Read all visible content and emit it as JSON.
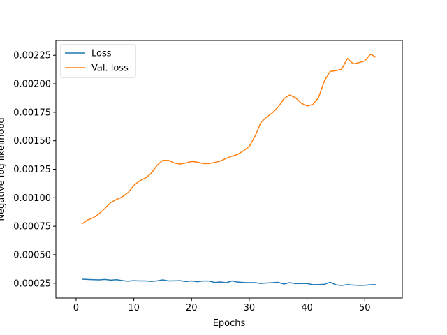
{
  "chart_data": {
    "type": "line",
    "xlabel": "Epochs",
    "ylabel": "Negative log likelihood",
    "xlim": [
      -3.5,
      56.5
    ],
    "ylim": [
      0.00012,
      0.00238
    ],
    "xticks": [
      0,
      10,
      20,
      30,
      40,
      50
    ],
    "yticks": [
      0.00025,
      0.0005,
      0.00075,
      0.001,
      0.00125,
      0.0015,
      0.00175,
      0.002,
      0.00225
    ],
    "ytick_labels": [
      "0.00025",
      "0.00050",
      "0.00075",
      "0.00100",
      "0.00125",
      "0.00150",
      "0.00175",
      "0.00200",
      "0.00225"
    ],
    "legend_position": "upper-left",
    "grid": false,
    "series": [
      {
        "name": "Loss",
        "color": "#1f77b4",
        "x": [
          1,
          2,
          3,
          4,
          5,
          6,
          7,
          8,
          9,
          10,
          11,
          12,
          13,
          14,
          15,
          16,
          17,
          18,
          19,
          20,
          21,
          22,
          23,
          24,
          25,
          26,
          27,
          28,
          29,
          30,
          31,
          32,
          33,
          34,
          35,
          36,
          37,
          38,
          39,
          40,
          41,
          42,
          43,
          44,
          45,
          46,
          47,
          48,
          49,
          50,
          51,
          52
        ],
        "y": [
          0.000285,
          0.000283,
          0.000281,
          0.000279,
          0.000283,
          0.000277,
          0.000281,
          0.000273,
          0.000268,
          0.000272,
          0.00027,
          0.00027,
          0.000266,
          0.00027,
          0.000279,
          0.00027,
          0.000271,
          0.000272,
          0.000265,
          0.00027,
          0.000263,
          0.000269,
          0.000269,
          0.000257,
          0.000261,
          0.000254,
          0.00027,
          0.00026,
          0.000256,
          0.000255,
          0.000255,
          0.000248,
          0.000252,
          0.000255,
          0.000258,
          0.000243,
          0.000255,
          0.000246,
          0.000248,
          0.000247,
          0.000237,
          0.000238,
          0.00024,
          0.000258,
          0.000236,
          0.00023,
          0.000237,
          0.000233,
          0.000231,
          0.000232,
          0.000236,
          0.000237
        ]
      },
      {
        "name": "Val. loss",
        "color": "#ff7f0e",
        "x": [
          1,
          2,
          3,
          4,
          5,
          6,
          7,
          8,
          9,
          10,
          11,
          12,
          13,
          14,
          15,
          16,
          17,
          18,
          19,
          20,
          21,
          22,
          23,
          24,
          25,
          26,
          27,
          28,
          29,
          30,
          31,
          32,
          33,
          34,
          35,
          36,
          37,
          38,
          39,
          40,
          41,
          42,
          43,
          44,
          45,
          46,
          47,
          48,
          49,
          50,
          51,
          52
        ],
        "y": [
          0.00077,
          0.000805,
          0.000825,
          0.00086,
          0.000907,
          0.000957,
          0.000985,
          0.001008,
          0.001045,
          0.001108,
          0.001148,
          0.001172,
          0.001214,
          0.001283,
          0.001328,
          0.001328,
          0.001305,
          0.001295,
          0.001305,
          0.001318,
          0.001313,
          0.0013,
          0.0013,
          0.00131,
          0.001322,
          0.001345,
          0.001365,
          0.00138,
          0.001412,
          0.00145,
          0.00154,
          0.00166,
          0.001708,
          0.001745,
          0.001795,
          0.00187,
          0.001902,
          0.001878,
          0.00183,
          0.001805,
          0.001818,
          0.00188,
          0.002025,
          0.002108,
          0.002115,
          0.002128,
          0.002223,
          0.002175,
          0.002186,
          0.0022,
          0.00226,
          0.002232
        ]
      }
    ]
  }
}
